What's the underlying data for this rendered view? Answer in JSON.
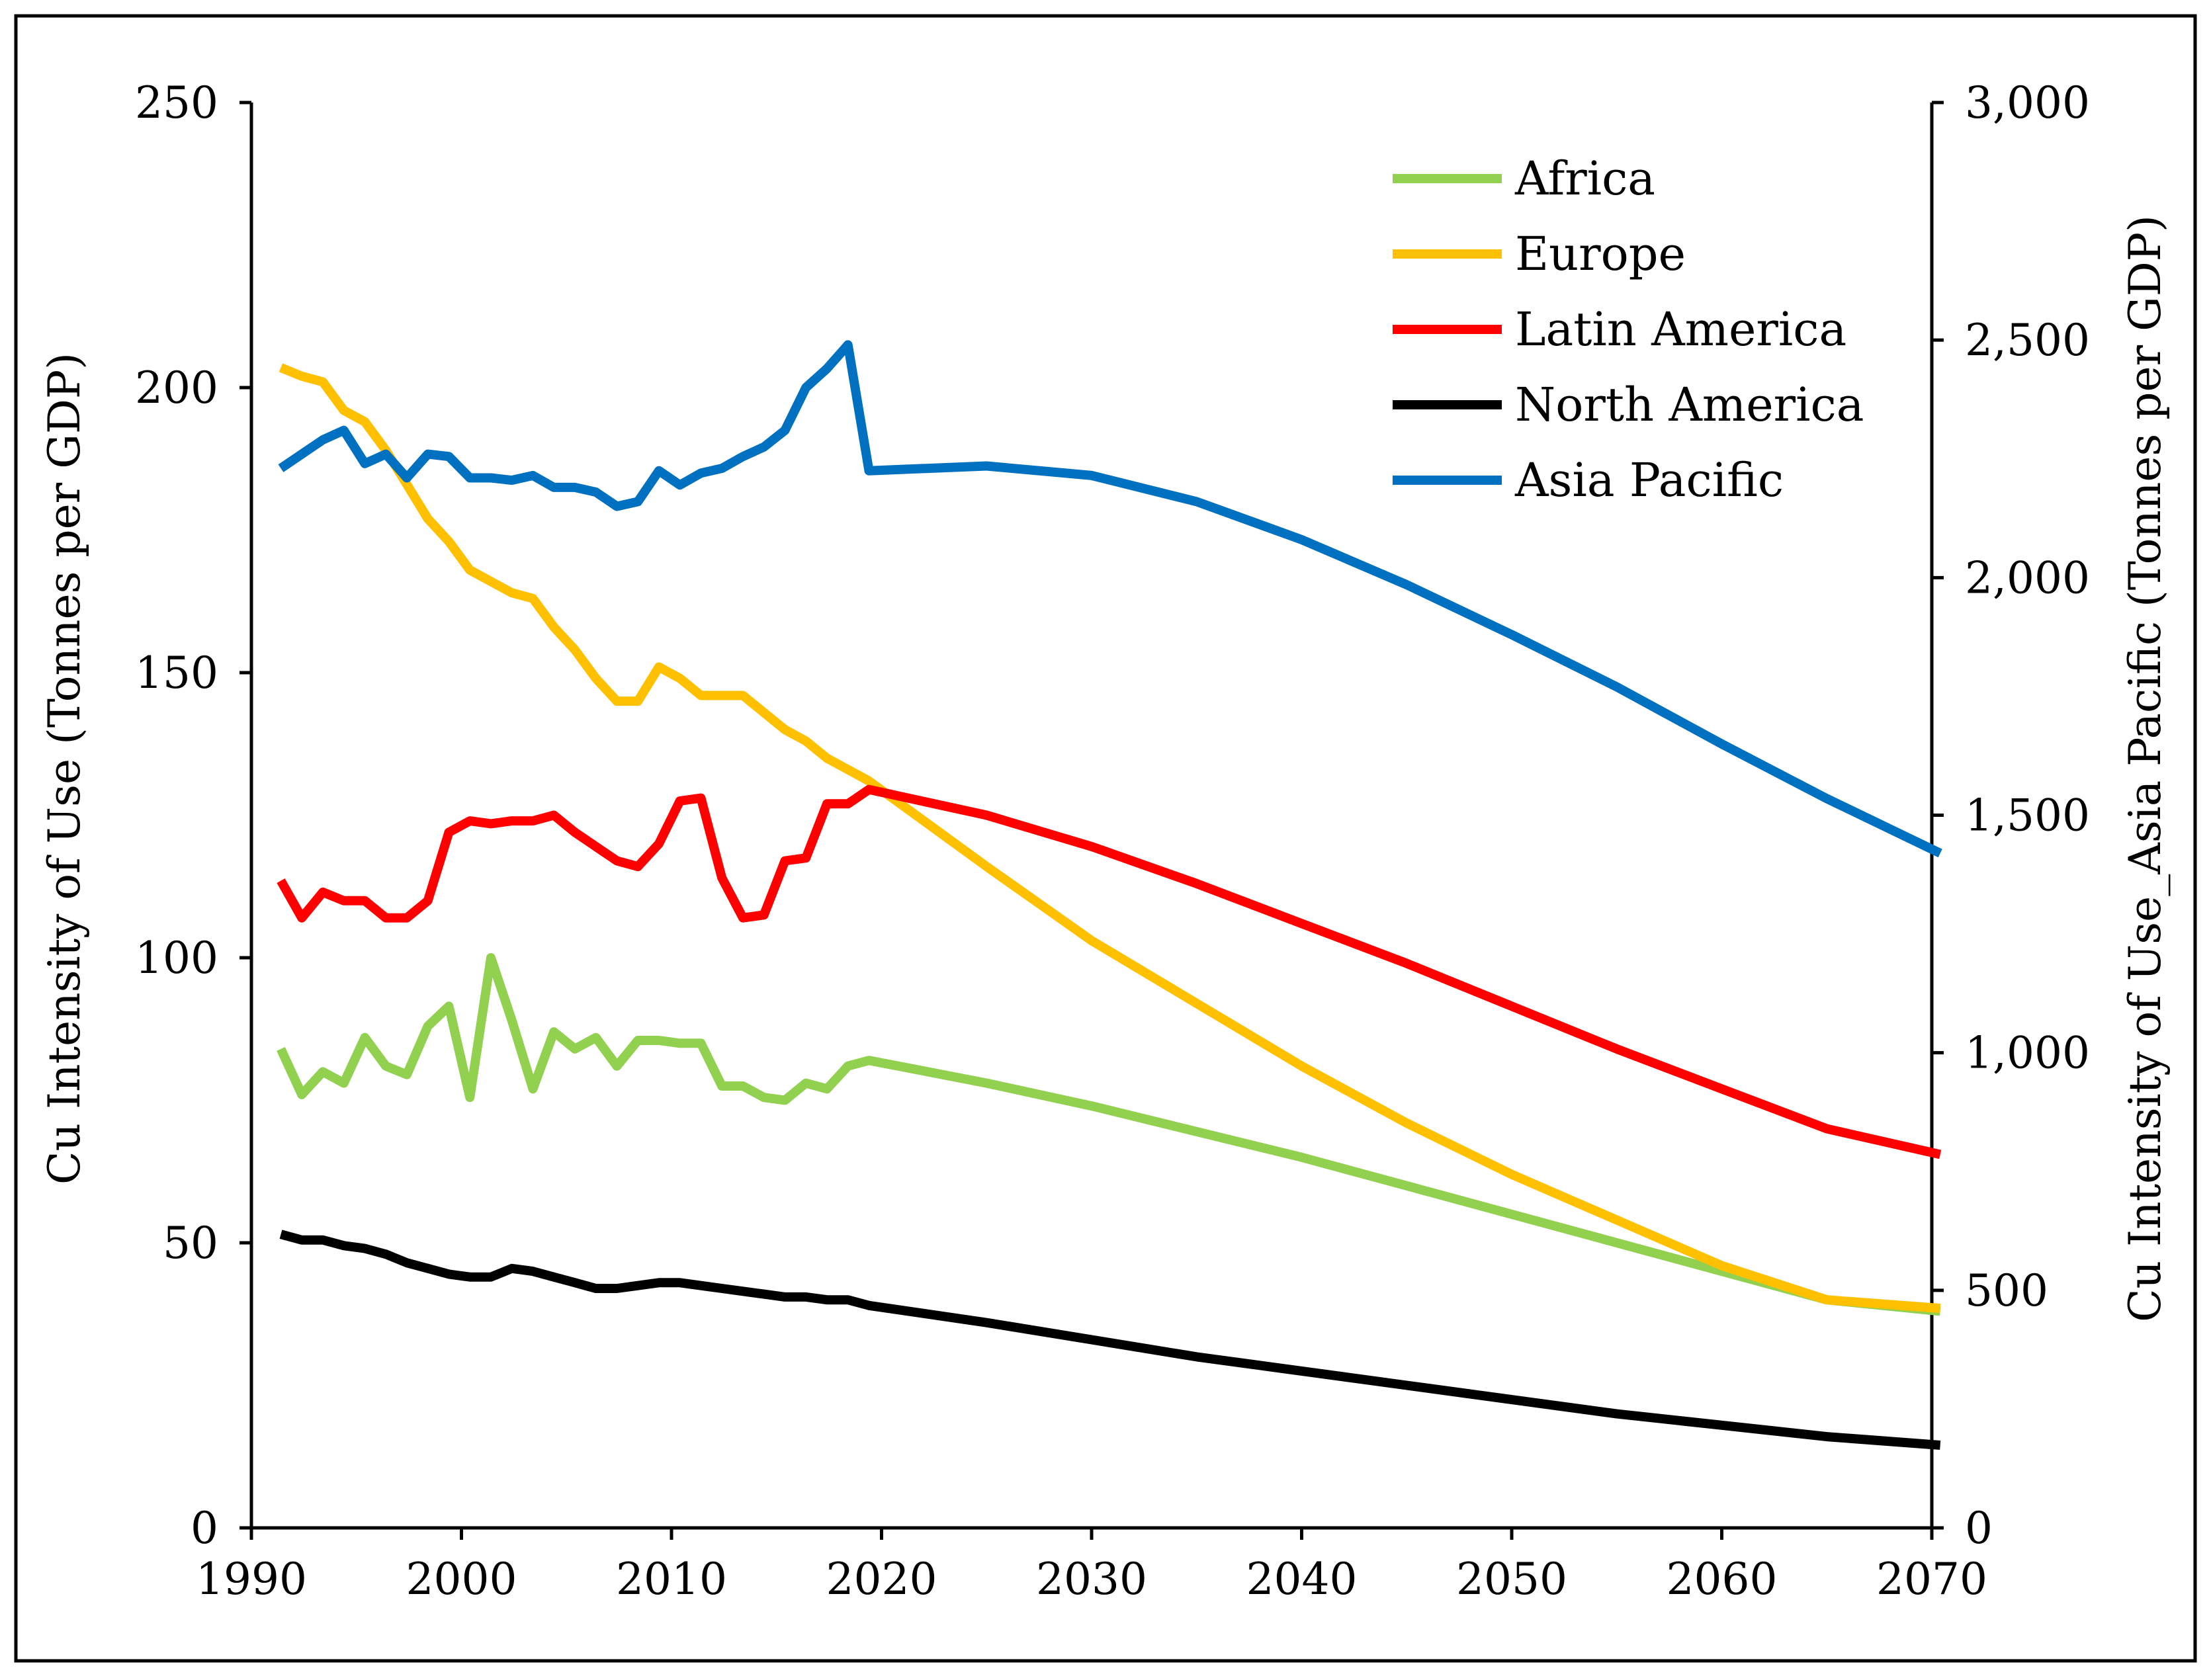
{
  "chart_data": {
    "type": "line",
    "title": "",
    "xlabel": "",
    "ylabel": "Cu Intensity of Use (Tonnes per GDP)",
    "y2label": "Cu Intensity of Use_Asia Pacific (Tonnes per GDP)",
    "xlim": [
      1990,
      2070
    ],
    "ylim": [
      0,
      250
    ],
    "y2lim": [
      0,
      3000
    ],
    "x_ticks": [
      1990,
      2000,
      2010,
      2020,
      2030,
      2040,
      2050,
      2060,
      2070
    ],
    "x_tick_labels": [
      "1990",
      "2000",
      "2010",
      "2020",
      "2030",
      "2040",
      "2050",
      "2060",
      "2070"
    ],
    "y_ticks": [
      0,
      50,
      100,
      150,
      200,
      250
    ],
    "y_tick_labels": [
      "0",
      "50",
      "100",
      "150",
      "200",
      "250"
    ],
    "y2_ticks": [
      0,
      500,
      1000,
      1500,
      2000,
      2500,
      3000
    ],
    "y2_tick_labels": [
      "0",
      "500",
      "1,000",
      "1,500",
      "2,000",
      "2,500",
      "3,000"
    ],
    "grid": false,
    "legend_position": "top-right",
    "series": [
      {
        "name": "Africa",
        "color": "#92d050",
        "axis": "left",
        "x": [
          1991.4,
          1992.4,
          1993.4,
          1994.4,
          1995.4,
          1996.4,
          1997.4,
          1998.4,
          1999.4,
          2000.4,
          2001.4,
          2002.4,
          2003.4,
          2004.4,
          2005.4,
          2006.4,
          2007.4,
          2008.4,
          2009.4,
          2010.4,
          2011.4,
          2012.4,
          2013.4,
          2014.4,
          2015.4,
          2016.4,
          2017.4,
          2018.4,
          2019.4,
          2025,
          2030,
          2035,
          2040,
          2045,
          2050,
          2055,
          2060,
          2065,
          2070.4
        ],
        "y": [
          84,
          76,
          80,
          78,
          86,
          81,
          79.5,
          88,
          91.5,
          75.5,
          100,
          89,
          77,
          87,
          84,
          86,
          81,
          85.5,
          85.5,
          85,
          85,
          77.5,
          77.5,
          75.5,
          75,
          78,
          77,
          81,
          82,
          78,
          74,
          69.5,
          65,
          60,
          55,
          50,
          45,
          40,
          38
        ]
      },
      {
        "name": "Europe",
        "color": "#ffc000",
        "axis": "left",
        "x": [
          1991.4,
          1992.4,
          1993.4,
          1994.4,
          1995.4,
          1996.4,
          1997.4,
          1998.4,
          1999.4,
          2000.4,
          2001.4,
          2002.4,
          2003.4,
          2004.4,
          2005.4,
          2006.4,
          2007.4,
          2008.4,
          2009.4,
          2010.4,
          2011.4,
          2012.4,
          2013.4,
          2014.4,
          2015.4,
          2016.4,
          2017.4,
          2018.4,
          2019.4,
          2025,
          2030,
          2035,
          2040,
          2045,
          2050,
          2055,
          2060,
          2065,
          2070.4
        ],
        "y": [
          203.5,
          202,
          201,
          196,
          194,
          189,
          183,
          177,
          173,
          168,
          166,
          164,
          163,
          158,
          154,
          149,
          145,
          145,
          151,
          149,
          146,
          146,
          146,
          143,
          140,
          138,
          135,
          133,
          131,
          116,
          103,
          92,
          81,
          71,
          62,
          54,
          46,
          40,
          38.5
        ]
      },
      {
        "name": "Latin America",
        "color": "#ff0000",
        "axis": "left",
        "x": [
          1991.4,
          1992.4,
          1993.4,
          1994.4,
          1995.4,
          1996.4,
          1997.4,
          1998.4,
          1999.4,
          2000.4,
          2001.4,
          2002.4,
          2003.4,
          2004.4,
          2005.4,
          2006.4,
          2007.4,
          2008.4,
          2009.4,
          2010.4,
          2011.4,
          2012.4,
          2013.4,
          2014.4,
          2015.4,
          2016.4,
          2017.4,
          2018.4,
          2019.4,
          2025,
          2030,
          2035,
          2040,
          2045,
          2050,
          2055,
          2060,
          2065,
          2070.4
        ],
        "y": [
          113.5,
          107,
          111.5,
          110,
          110,
          107,
          107,
          110,
          122,
          124,
          123.5,
          124,
          124,
          125,
          122,
          119.5,
          117,
          116,
          120,
          127.5,
          128,
          114,
          107,
          107.5,
          117,
          117.5,
          127,
          127,
          129.5,
          125,
          119.5,
          113,
          106,
          99,
          91.5,
          84,
          77,
          70,
          65.5
        ]
      },
      {
        "name": "North America",
        "color": "#000000",
        "axis": "left",
        "x": [
          1991.4,
          1992.4,
          1993.4,
          1994.4,
          1995.4,
          1996.4,
          1997.4,
          1998.4,
          1999.4,
          2000.4,
          2001.4,
          2002.4,
          2003.4,
          2004.4,
          2005.4,
          2006.4,
          2007.4,
          2008.4,
          2009.4,
          2010.4,
          2011.4,
          2012.4,
          2013.4,
          2014.4,
          2015.4,
          2016.4,
          2017.4,
          2018.4,
          2019.4,
          2025,
          2030,
          2035,
          2040,
          2045,
          2050,
          2055,
          2060,
          2065,
          2070.4
        ],
        "y": [
          51.5,
          50.5,
          50.5,
          49.5,
          49,
          48,
          46.5,
          45.5,
          44.5,
          44,
          44,
          45.5,
          45,
          44,
          43,
          42,
          42,
          42.5,
          43,
          43,
          42.5,
          42,
          41.5,
          41,
          40.5,
          40.5,
          40,
          40,
          39,
          36,
          33,
          30,
          27.5,
          25,
          22.5,
          20,
          18,
          16,
          14.5
        ]
      },
      {
        "name": "Asia Pacific",
        "color": "#0070c0",
        "axis": "right",
        "x": [
          1991.4,
          1992.4,
          1993.4,
          1994.4,
          1995.4,
          1996.4,
          1997.4,
          1998.4,
          1999.4,
          2000.4,
          2001.4,
          2002.4,
          2003.4,
          2004.4,
          2005.4,
          2006.4,
          2007.4,
          2008.4,
          2009.4,
          2010.4,
          2011.4,
          2012.4,
          2013.4,
          2014.4,
          2015.4,
          2016.4,
          2017.4,
          2018.4,
          2019.4,
          2025,
          2030,
          2035,
          2040,
          2045,
          2050,
          2055,
          2060,
          2065,
          2070.4
        ],
        "y": [
          2230,
          2260,
          2290,
          2310,
          2240,
          2260,
          2210,
          2260,
          2255,
          2210,
          2210,
          2205,
          2215,
          2190,
          2190,
          2180,
          2150,
          2160,
          2225,
          2195,
          2220,
          2230,
          2255,
          2275,
          2310,
          2400,
          2440,
          2490,
          2225,
          2235,
          2215,
          2160,
          2080,
          1985,
          1880,
          1770,
          1650,
          1535,
          1420
        ]
      }
    ]
  }
}
